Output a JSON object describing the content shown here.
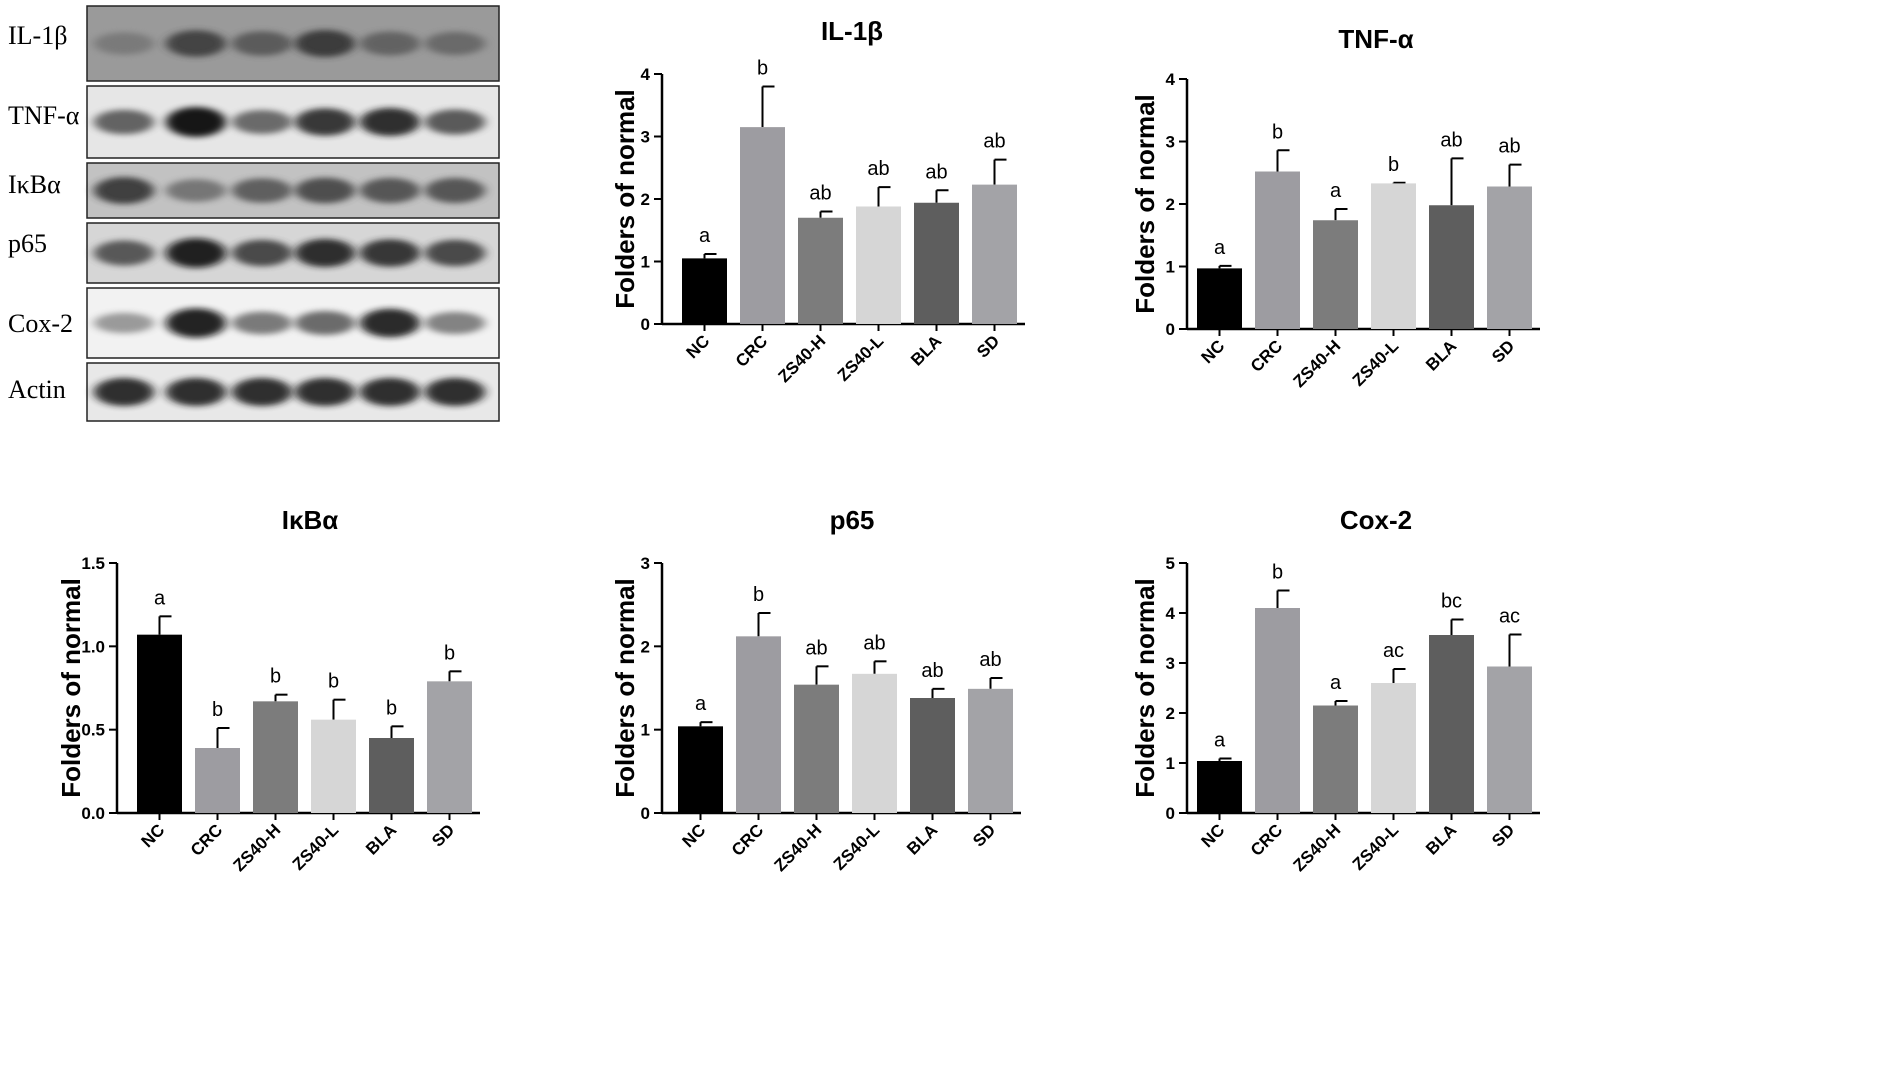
{
  "western_blot": {
    "labels": [
      "IL-1β",
      "TNF-α",
      "IκBα",
      "p65",
      "Cox-2",
      "Actin"
    ],
    "band_intensity": [
      [
        0.35,
        0.7,
        0.55,
        0.75,
        0.5,
        0.45
      ],
      [
        0.55,
        1.0,
        0.5,
        0.8,
        0.85,
        0.6
      ],
      [
        0.75,
        0.4,
        0.55,
        0.65,
        0.6,
        0.6
      ],
      [
        0.6,
        0.95,
        0.7,
        0.85,
        0.8,
        0.7
      ],
      [
        0.2,
        0.95,
        0.4,
        0.5,
        0.9,
        0.35
      ],
      [
        0.85,
        0.85,
        0.85,
        0.85,
        0.85,
        0.85
      ]
    ]
  },
  "colors": {
    "NC": "#000000",
    "CRC": "#9d9ca1",
    "ZS40-H": "#7c7c7c",
    "ZS40-L": "#d6d6d6",
    "BLA": "#5e5e5e",
    "SD": "#a3a3a7"
  },
  "chart_data": [
    {
      "type": "bar",
      "title": "IL-1β",
      "ylabel": "Folders of normal",
      "categories": [
        "NC",
        "CRC",
        "ZS40-H",
        "ZS40-L",
        "BLA",
        "SD"
      ],
      "values": [
        1.05,
        3.15,
        1.7,
        1.88,
        1.94,
        2.23
      ],
      "errors": [
        0.07,
        0.65,
        0.1,
        0.31,
        0.2,
        0.4
      ],
      "significance": [
        "a",
        "b",
        "ab",
        "ab",
        "ab",
        "ab"
      ],
      "ylim": [
        0,
        4
      ],
      "yticks": [
        "0",
        "1",
        "2",
        "3",
        "4"
      ]
    },
    {
      "type": "bar",
      "title": "TNF-α",
      "ylabel": "Folders of normal",
      "categories": [
        "NC",
        "CRC",
        "ZS40-H",
        "ZS40-L",
        "BLA",
        "SD"
      ],
      "values": [
        0.97,
        2.52,
        1.74,
        2.33,
        1.98,
        2.28
      ],
      "errors": [
        0.04,
        0.34,
        0.18,
        0.01,
        0.75,
        0.35
      ],
      "significance": [
        "a",
        "b",
        "a",
        "b",
        "ab",
        "ab"
      ],
      "ylim": [
        0,
        4
      ],
      "yticks": [
        "0",
        "1",
        "2",
        "3",
        "4"
      ]
    },
    {
      "type": "bar",
      "title": "IκBα",
      "ylabel": "Folders of normal",
      "categories": [
        "NC",
        "CRC",
        "ZS40-H",
        "ZS40-L",
        "BLA",
        "SD"
      ],
      "values": [
        1.07,
        0.39,
        0.67,
        0.56,
        0.45,
        0.79
      ],
      "errors": [
        0.11,
        0.12,
        0.04,
        0.12,
        0.07,
        0.06
      ],
      "significance": [
        "a",
        "b",
        "b",
        "b",
        "b",
        "b"
      ],
      "ylim": [
        0,
        1.5
      ],
      "yticks": [
        "0.0",
        "0.5",
        "1.0",
        "1.5"
      ]
    },
    {
      "type": "bar",
      "title": "p65",
      "ylabel": "Folders of normal",
      "categories": [
        "NC",
        "CRC",
        "ZS40-H",
        "ZS40-L",
        "BLA",
        "SD"
      ],
      "values": [
        1.04,
        2.12,
        1.54,
        1.67,
        1.38,
        1.49
      ],
      "errors": [
        0.05,
        0.28,
        0.22,
        0.15,
        0.11,
        0.13
      ],
      "significance": [
        "a",
        "b",
        "ab",
        "ab",
        "ab",
        "ab"
      ],
      "ylim": [
        0,
        3
      ],
      "yticks": [
        "0",
        "1",
        "2",
        "3"
      ]
    },
    {
      "type": "bar",
      "title": "Cox-2",
      "ylabel": "Folders of normal",
      "categories": [
        "NC",
        "CRC",
        "ZS40-H",
        "ZS40-L",
        "BLA",
        "SD"
      ],
      "values": [
        1.04,
        4.1,
        2.15,
        2.6,
        3.56,
        2.93
      ],
      "errors": [
        0.05,
        0.35,
        0.09,
        0.28,
        0.31,
        0.64
      ],
      "significance": [
        "a",
        "b",
        "a",
        "ac",
        "bc",
        "ac"
      ],
      "ylim": [
        0,
        5
      ],
      "yticks": [
        "0",
        "1",
        "2",
        "3",
        "4",
        "5"
      ]
    }
  ]
}
